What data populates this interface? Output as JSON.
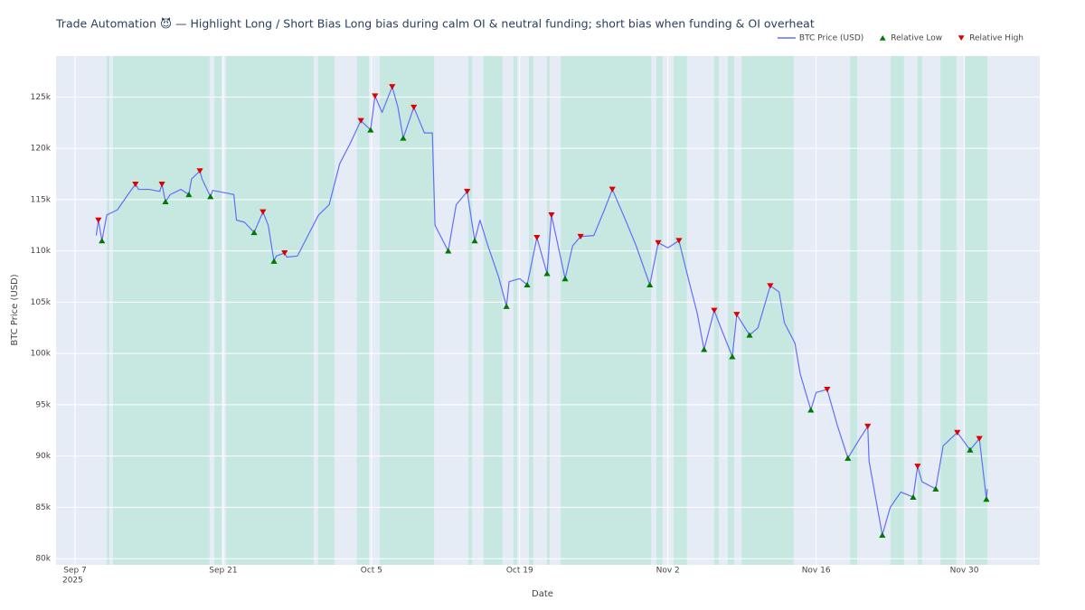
{
  "chart_data": {
    "type": "line",
    "title": "Trade Automation 😈 — Highlight Long / Short Bias Long bias during calm OI & neutral funding; short bias when funding & OI overheat",
    "xlabel": "Date",
    "ylabel": "BTC Price (USD)",
    "xlim": [
      "2025-09-05 05:00",
      "2025-12-07 03:00"
    ],
    "xticks": [
      {
        "value": "2025-09-07 00:00",
        "label": "Sep 7",
        "sublabel": "2025"
      },
      {
        "value": "2025-09-21 00:00",
        "label": "Sep 21"
      },
      {
        "value": "2025-10-05 00:00",
        "label": "Oct 5"
      },
      {
        "value": "2025-10-19 00:00",
        "label": "Oct 19"
      },
      {
        "value": "2025-11-02 00:00",
        "label": "Nov 2"
      },
      {
        "value": "2025-11-16 00:00",
        "label": "Nov 16"
      },
      {
        "value": "2025-11-30 00:00",
        "label": "Nov 30"
      }
    ],
    "ylim": [
      79400,
      129000
    ],
    "yticks": [
      {
        "value": 80000,
        "label": "80k"
      },
      {
        "value": 85000,
        "label": "85k"
      },
      {
        "value": 90000,
        "label": "90k"
      },
      {
        "value": 95000,
        "label": "95k"
      },
      {
        "value": 100000,
        "label": "100k"
      },
      {
        "value": 105000,
        "label": "105k"
      },
      {
        "value": 110000,
        "label": "110k"
      },
      {
        "value": 115000,
        "label": "115k"
      },
      {
        "value": 120000,
        "label": "120k"
      },
      {
        "value": 125000,
        "label": "125k"
      }
    ],
    "grid": true,
    "legend": "top-right",
    "long_bias_color": "rgba(0,200,83,0.13)",
    "long_bias_periods": [
      [
        "2025-09-10 00:00",
        "2025-09-10 06:00"
      ],
      [
        "2025-09-10 14:00",
        "2025-09-19 17:00"
      ],
      [
        "2025-09-20 04:00",
        "2025-09-20 20:00"
      ],
      [
        "2025-09-21 06:00",
        "2025-09-29 13:00"
      ],
      [
        "2025-09-29 23:00",
        "2025-10-01 12:00"
      ],
      [
        "2025-10-03 15:00",
        "2025-10-04 18:00"
      ],
      [
        "2025-10-05 19:00",
        "2025-10-10 22:00"
      ],
      [
        "2025-10-14 04:00",
        "2025-10-14 12:00"
      ],
      [
        "2025-10-15 14:00",
        "2025-10-17 09:00"
      ],
      [
        "2025-10-18 10:00",
        "2025-10-18 18:00"
      ],
      [
        "2025-10-19 21:00",
        "2025-10-20 07:00"
      ],
      [
        "2025-10-21 14:00",
        "2025-10-21 20:00"
      ],
      [
        "2025-10-22 21:00",
        "2025-10-31 10:00"
      ],
      [
        "2025-10-31 22:00",
        "2025-11-01 12:00"
      ],
      [
        "2025-11-02 13:00",
        "2025-11-03 19:00"
      ],
      [
        "2025-11-06 09:00",
        "2025-11-06 19:00"
      ],
      [
        "2025-11-07 16:00",
        "2025-11-08 06:00"
      ],
      [
        "2025-11-08 23:00",
        "2025-11-13 21:00"
      ],
      [
        "2025-11-19 05:00",
        "2025-11-19 21:00"
      ],
      [
        "2025-11-23 01:00",
        "2025-11-24 07:00"
      ],
      [
        "2025-11-25 14:00",
        "2025-11-26 00:00"
      ],
      [
        "2025-11-27 18:00",
        "2025-11-29 06:00"
      ],
      [
        "2025-11-29 23:00",
        "2025-12-02 04:00"
      ]
    ],
    "series": [
      {
        "name": "BTC Price (USD)",
        "color": "#636efa",
        "x": [
          "2025-09-09 00:00",
          "2025-09-09 05:00",
          "2025-09-09 13:00",
          "2025-09-10 00:00",
          "2025-09-11 00:00",
          "2025-09-12 00:00",
          "2025-09-12 17:00",
          "2025-09-13 00:00",
          "2025-09-14 00:00",
          "2025-09-15 00:00",
          "2025-09-15 05:00",
          "2025-09-15 13:00",
          "2025-09-16 00:00",
          "2025-09-17 00:00",
          "2025-09-17 18:00",
          "2025-09-18 00:00",
          "2025-09-18 19:00",
          "2025-09-19 00:00",
          "2025-09-19 19:00",
          "2025-09-20 00:00",
          "2025-09-21 00:00",
          "2025-09-22 00:00",
          "2025-09-22 06:00",
          "2025-09-23 00:00",
          "2025-09-23 22:00",
          "2025-09-24 18:00",
          "2025-09-25 06:00",
          "2025-09-25 19:00",
          "2025-09-26 00:00",
          "2025-09-26 19:00",
          "2025-09-27 00:00",
          "2025-09-28 00:00",
          "2025-09-29 00:00",
          "2025-09-30 00:00",
          "2025-10-01 00:00",
          "2025-10-01 12:00",
          "2025-10-02 00:00",
          "2025-10-03 00:00",
          "2025-10-04 00:00",
          "2025-10-04 22:00",
          "2025-10-05 08:00",
          "2025-10-06 00:00",
          "2025-10-06 23:00",
          "2025-10-07 12:00",
          "2025-10-08 00:00",
          "2025-10-09 00:00",
          "2025-10-10 00:00",
          "2025-10-10 18:00",
          "2025-10-11 00:00",
          "2025-10-12 06:00",
          "2025-10-13 00:00",
          "2025-10-14 01:00",
          "2025-10-14 18:00",
          "2025-10-15 06:00",
          "2025-10-16 00:00",
          "2025-10-17 00:00",
          "2025-10-17 18:00",
          "2025-10-18 00:00",
          "2025-10-19 00:00",
          "2025-10-19 17:00",
          "2025-10-20 15:00",
          "2025-10-21 14:00",
          "2025-10-22 00:00",
          "2025-10-23 07:00",
          "2025-10-24 00:00",
          "2025-10-24 18:00",
          "2025-10-26 00:00",
          "2025-10-27 00:00",
          "2025-10-27 18:00",
          "2025-10-29 00:00",
          "2025-10-30 00:00",
          "2025-10-31 07:00",
          "2025-11-01 02:00",
          "2025-11-02 00:00",
          "2025-11-03 01:00",
          "2025-11-04 00:00",
          "2025-11-04 18:00",
          "2025-11-05 10:00",
          "2025-11-06 09:00",
          "2025-11-07 00:00",
          "2025-11-08 02:00",
          "2025-11-08 12:00",
          "2025-11-09 17:00",
          "2025-11-10 12:00",
          "2025-11-11 16:00",
          "2025-11-12 12:00",
          "2025-11-13 00:00",
          "2025-11-14 00:00",
          "2025-11-14 12:00",
          "2025-11-15 12:00",
          "2025-11-16 00:00",
          "2025-11-17 01:00",
          "2025-11-18 00:00",
          "2025-11-19 00:00",
          "2025-11-20 00:00",
          "2025-11-20 21:00",
          "2025-11-21 00:00",
          "2025-11-22 06:00",
          "2025-11-23 00:00",
          "2025-11-24 00:00",
          "2025-11-25 04:00",
          "2025-11-25 14:00",
          "2025-11-26 00:00",
          "2025-11-27 07:00",
          "2025-11-28 00:00",
          "2025-11-29 08:00",
          "2025-11-30 13:00",
          "2025-12-01 10:00",
          "2025-12-02 02:00",
          "2025-12-02 04:00"
        ],
        "values": [
          111500,
          113000,
          111000,
          113500,
          114000,
          115500,
          116500,
          116000,
          116000,
          115800,
          116500,
          114800,
          115500,
          116000,
          115500,
          117000,
          117800,
          117000,
          115300,
          115900,
          115700,
          115500,
          113000,
          112800,
          111800,
          113800,
          112500,
          109000,
          109500,
          109800,
          109400,
          109500,
          111500,
          113500,
          114500,
          116500,
          118500,
          120500,
          122700,
          121800,
          125100,
          123500,
          126000,
          124000,
          121000,
          124000,
          121500,
          121500,
          112500,
          110000,
          114500,
          115800,
          111000,
          113000,
          110500,
          107500,
          104600,
          107000,
          107300,
          106700,
          111300,
          107800,
          113500,
          107300,
          110500,
          111400,
          111500,
          114000,
          116000,
          113000,
          110500,
          106700,
          110800,
          110300,
          111000,
          107000,
          104000,
          100400,
          104200,
          102500,
          99700,
          103800,
          101800,
          102500,
          106600,
          106000,
          103000,
          101000,
          98000,
          94500,
          96200,
          96500,
          93000,
          89800,
          91500,
          92900,
          89500,
          82300,
          85000,
          86500,
          86000,
          89000,
          87500,
          86800,
          91000,
          92300,
          90600,
          91700,
          85800,
          86800
        ]
      },
      {
        "name": "Relative Low",
        "color": "#007a00",
        "marker": "triangle-up",
        "x": [
          "2025-09-09 13:00",
          "2025-09-15 13:00",
          "2025-09-17 18:00",
          "2025-09-19 19:00",
          "2025-09-23 22:00",
          "2025-09-25 19:00",
          "2025-10-04 22:00",
          "2025-10-08 00:00",
          "2025-10-12 06:00",
          "2025-10-14 18:00",
          "2025-10-17 18:00",
          "2025-10-19 17:00",
          "2025-10-21 14:00",
          "2025-10-23 07:00",
          "2025-10-31 07:00",
          "2025-11-05 10:00",
          "2025-11-08 02:00",
          "2025-11-09 17:00",
          "2025-11-15 12:00",
          "2025-11-19 00:00",
          "2025-11-22 06:00",
          "2025-11-25 04:00",
          "2025-11-27 07:00",
          "2025-11-30 13:00",
          "2025-12-02 02:00"
        ],
        "values": [
          111000,
          114800,
          115500,
          115300,
          111800,
          109000,
          121800,
          121000,
          110000,
          111000,
          104600,
          106700,
          107800,
          107300,
          106700,
          100400,
          99700,
          101800,
          94500,
          89800,
          82300,
          86000,
          86800,
          90600,
          85800
        ]
      },
      {
        "name": "Relative High",
        "color": "#e00000",
        "marker": "triangle-down",
        "x": [
          "2025-09-09 05:00",
          "2025-09-12 17:00",
          "2025-09-15 05:00",
          "2025-09-18 19:00",
          "2025-09-24 18:00",
          "2025-09-26 19:00",
          "2025-10-04 00:00",
          "2025-10-05 08:00",
          "2025-10-06 23:00",
          "2025-10-09 00:00",
          "2025-10-14 01:00",
          "2025-10-20 15:00",
          "2025-10-22 00:00",
          "2025-10-24 18:00",
          "2025-10-27 18:00",
          "2025-11-01 02:00",
          "2025-11-03 01:00",
          "2025-11-06 09:00",
          "2025-11-08 12:00",
          "2025-11-11 16:00",
          "2025-11-17 01:00",
          "2025-11-20 21:00",
          "2025-11-25 14:00",
          "2025-11-29 08:00",
          "2025-12-01 10:00"
        ],
        "values": [
          113000,
          116500,
          116500,
          117800,
          113800,
          109800,
          122700,
          125100,
          126000,
          124000,
          115800,
          111300,
          113500,
          111400,
          116000,
          110800,
          111000,
          104200,
          103800,
          106600,
          96500,
          92900,
          89000,
          92300,
          91700
        ]
      }
    ]
  }
}
